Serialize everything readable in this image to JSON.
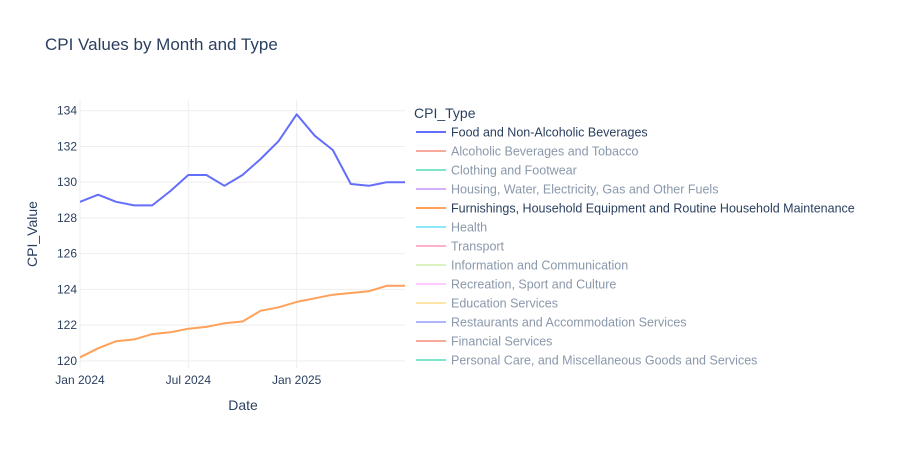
{
  "chart_data": {
    "type": "line",
    "title": "CPI Values by Month and Type",
    "xlabel": "Date",
    "ylabel": "CPI_Value",
    "x_range": [
      "2024-01",
      "2025-07"
    ],
    "ylim": [
      119.6,
      134.6
    ],
    "x_ticks": [
      {
        "date": "2024-01",
        "label": "Jan 2024"
      },
      {
        "date": "2024-07",
        "label": "Jul 2024"
      },
      {
        "date": "2025-01",
        "label": "Jan 2025"
      }
    ],
    "y_ticks": [
      {
        "value": 120,
        "label": "120"
      },
      {
        "value": 122,
        "label": "122"
      },
      {
        "value": 124,
        "label": "124"
      },
      {
        "value": 126,
        "label": "126"
      },
      {
        "value": 128,
        "label": "128"
      },
      {
        "value": 130,
        "label": "130"
      },
      {
        "value": 132,
        "label": "132"
      },
      {
        "value": 134,
        "label": "134"
      }
    ],
    "grid": true,
    "legend": {
      "title": "CPI_Type",
      "placement": "right",
      "entries": [
        {
          "name": "Food and Non-Alcoholic Beverages",
          "color": "#636efa",
          "visible": true
        },
        {
          "name": "Alcoholic Beverages and Tobacco",
          "color": "#ef553b",
          "visible": false
        },
        {
          "name": "Clothing and Footwear",
          "color": "#00cc96",
          "visible": false
        },
        {
          "name": "Housing, Water, Electricity, Gas and Other Fuels",
          "color": "#ab63fa",
          "visible": false
        },
        {
          "name": "Furnishings, Household Equipment and Routine Household Maintenance",
          "color": "#ffa15a",
          "visible": true
        },
        {
          "name": "Health",
          "color": "#19d3f3",
          "visible": false
        },
        {
          "name": "Transport",
          "color": "#ff6692",
          "visible": false
        },
        {
          "name": "Information and Communication",
          "color": "#b6e880",
          "visible": false
        },
        {
          "name": "Recreation, Sport and Culture",
          "color": "#ff97ff",
          "visible": false
        },
        {
          "name": "Education Services",
          "color": "#fecb52",
          "visible": false
        },
        {
          "name": "Restaurants and Accommodation Services",
          "color": "#636efa",
          "visible": false
        },
        {
          "name": "Financial Services",
          "color": "#ef553b",
          "visible": false
        },
        {
          "name": "Personal Care, and Miscellaneous Goods and Services",
          "color": "#00cc96",
          "visible": false
        }
      ]
    },
    "x": [
      "2024-01",
      "2024-02",
      "2024-03",
      "2024-04",
      "2024-05",
      "2024-06",
      "2024-07",
      "2024-08",
      "2024-09",
      "2024-10",
      "2024-11",
      "2024-12",
      "2025-01",
      "2025-02",
      "2025-03",
      "2025-04",
      "2025-05",
      "2025-06",
      "2025-07"
    ],
    "series": [
      {
        "name": "Food and Non-Alcoholic Beverages",
        "color": "#636efa",
        "values": [
          128.9,
          129.3,
          128.9,
          128.7,
          128.7,
          129.5,
          130.4,
          130.4,
          129.8,
          130.4,
          131.3,
          132.3,
          133.8,
          132.6,
          131.8,
          129.9,
          129.8,
          130.0,
          130.0
        ]
      },
      {
        "name": "Furnishings, Household Equipment and Routine Household Maintenance",
        "color": "#ffa15a",
        "values": [
          120.2,
          120.7,
          121.1,
          121.2,
          121.5,
          121.6,
          121.8,
          121.9,
          122.1,
          122.2,
          122.8,
          123.0,
          123.3,
          123.5,
          123.7,
          123.8,
          123.9,
          124.2,
          124.2
        ]
      }
    ]
  }
}
